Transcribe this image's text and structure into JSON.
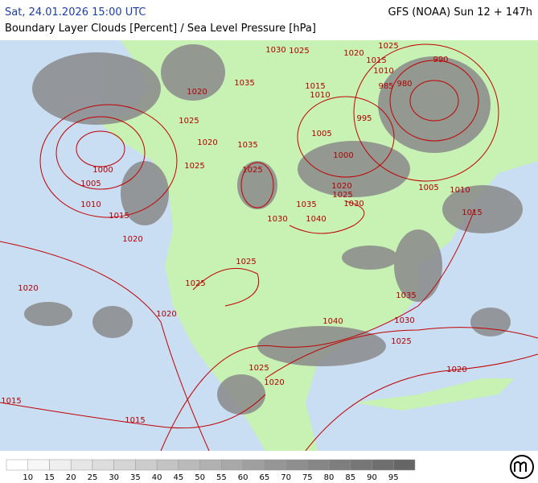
{
  "header": {
    "datetime": "Sat, 24.01.2026 15:00 UTC",
    "model": "GFS (NOAA) Sun 12 + 147h",
    "subtitle": "Boundary Layer Clouds [Percent] / Sea Level Pressure [hPa]"
  },
  "map": {
    "isobar_labels": [
      1030,
      1025,
      1020,
      1025,
      1015,
      1010,
      990,
      985,
      980,
      1035,
      1015,
      1010,
      1020,
      995,
      1005,
      1025,
      1020,
      1035,
      1000,
      1025,
      1025,
      1000,
      1005,
      1020,
      1025,
      1030,
      1005,
      1010,
      1035,
      1010,
      1015,
      1030,
      1040,
      1015,
      1020,
      1025,
      1025,
      1020,
      1035,
      1020,
      1040,
      1030,
      1025,
      1025,
      1020,
      1020,
      1015,
      1015
    ]
  },
  "legend": {
    "labels": [
      10,
      15,
      20,
      25,
      30,
      35,
      40,
      45,
      50,
      55,
      60,
      65,
      70,
      75,
      80,
      85,
      90,
      95
    ],
    "colors": [
      "#ffffff",
      "#f7f7f7",
      "#efefef",
      "#e6e6e6",
      "#dddddd",
      "#d5d5d5",
      "#cccccc",
      "#c3c3c3",
      "#bababa",
      "#b1b1b1",
      "#a8a8a8",
      "#9f9f9f",
      "#969696",
      "#8e8e8e",
      "#868686",
      "#7e7e7e",
      "#767676",
      "#6e6e6e",
      "#666666"
    ]
  }
}
